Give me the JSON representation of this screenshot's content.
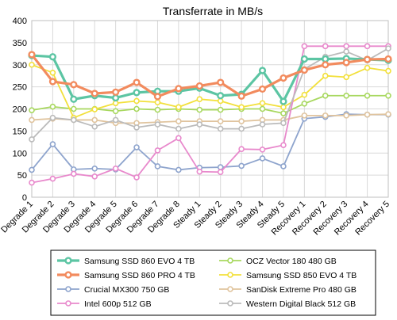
{
  "chart_data": {
    "type": "line",
    "title": "Transferrate in MB/s",
    "xlabel": "",
    "ylabel": "",
    "ylim": [
      0,
      400
    ],
    "yticks": [
      0,
      50,
      100,
      150,
      200,
      250,
      300,
      350,
      400
    ],
    "grid": true,
    "legend_position": "bottom",
    "categories": [
      "Degrade 1",
      "Degrade 2",
      "Degrade 3",
      "Degrade 4",
      "Degrade 5",
      "Degrade 6",
      "Degrade 7",
      "Degrade 8",
      "Steady 1",
      "Steady 2",
      "Steady 3",
      "Steady 4",
      "Steady 5",
      "Recovery 1",
      "Recovery 2",
      "Recovery 3",
      "Recovery 4",
      "Recovery 5"
    ],
    "series": [
      {
        "name": "Samsung SSD 860 EVO 4 TB",
        "color": "#5cc5a3",
        "bold": true,
        "values": [
          321,
          318,
          222,
          230,
          225,
          237,
          240,
          240,
          247,
          230,
          233,
          287,
          217,
          313,
          313,
          314,
          312,
          310
        ]
      },
      {
        "name": "OCZ Vector 180 480 GB",
        "color": "#a8d85f",
        "bold": false,
        "values": [
          197,
          205,
          200,
          200,
          195,
          200,
          198,
          200,
          198,
          198,
          200,
          200,
          190,
          212,
          230,
          230,
          230,
          230
        ]
      },
      {
        "name": "Samsung SSD 860 PRO 4 TB",
        "color": "#f28b5e",
        "bold": true,
        "values": [
          323,
          262,
          255,
          235,
          238,
          260,
          228,
          246,
          252,
          260,
          229,
          245,
          270,
          288,
          300,
          305,
          312,
          313
        ]
      },
      {
        "name": "Samsung SSD 850 EVO 4 TB",
        "color": "#f2e03c",
        "bold": false,
        "values": [
          300,
          282,
          180,
          199,
          213,
          218,
          215,
          204,
          222,
          218,
          204,
          213,
          204,
          232,
          275,
          272,
          293,
          286
        ]
      },
      {
        "name": "Crucial MX300 750 GB",
        "color": "#8ea4cd",
        "bold": false,
        "values": [
          62,
          120,
          63,
          65,
          63,
          113,
          70,
          62,
          67,
          68,
          71,
          88,
          70,
          178,
          182,
          188,
          187,
          187
        ]
      },
      {
        "name": "SanDisk Extreme Pro 480 GB",
        "color": "#e0c49e",
        "bold": false,
        "values": [
          175,
          178,
          175,
          175,
          168,
          168,
          170,
          172,
          172,
          172,
          172,
          175,
          175,
          185,
          185,
          185,
          187,
          188
        ]
      },
      {
        "name": "Intel 600p 512 GB",
        "color": "#e889cc",
        "bold": false,
        "values": [
          33,
          42,
          53,
          47,
          65,
          45,
          106,
          134,
          58,
          57,
          109,
          108,
          118,
          342,
          342,
          342,
          342,
          342
        ]
      },
      {
        "name": "Western Digital Black 512 GB",
        "color": "#bbbbbb",
        "bold": false,
        "values": [
          131,
          180,
          175,
          160,
          175,
          158,
          165,
          155,
          165,
          155,
          155,
          165,
          168,
          290,
          318,
          330,
          310,
          337
        ]
      }
    ]
  }
}
